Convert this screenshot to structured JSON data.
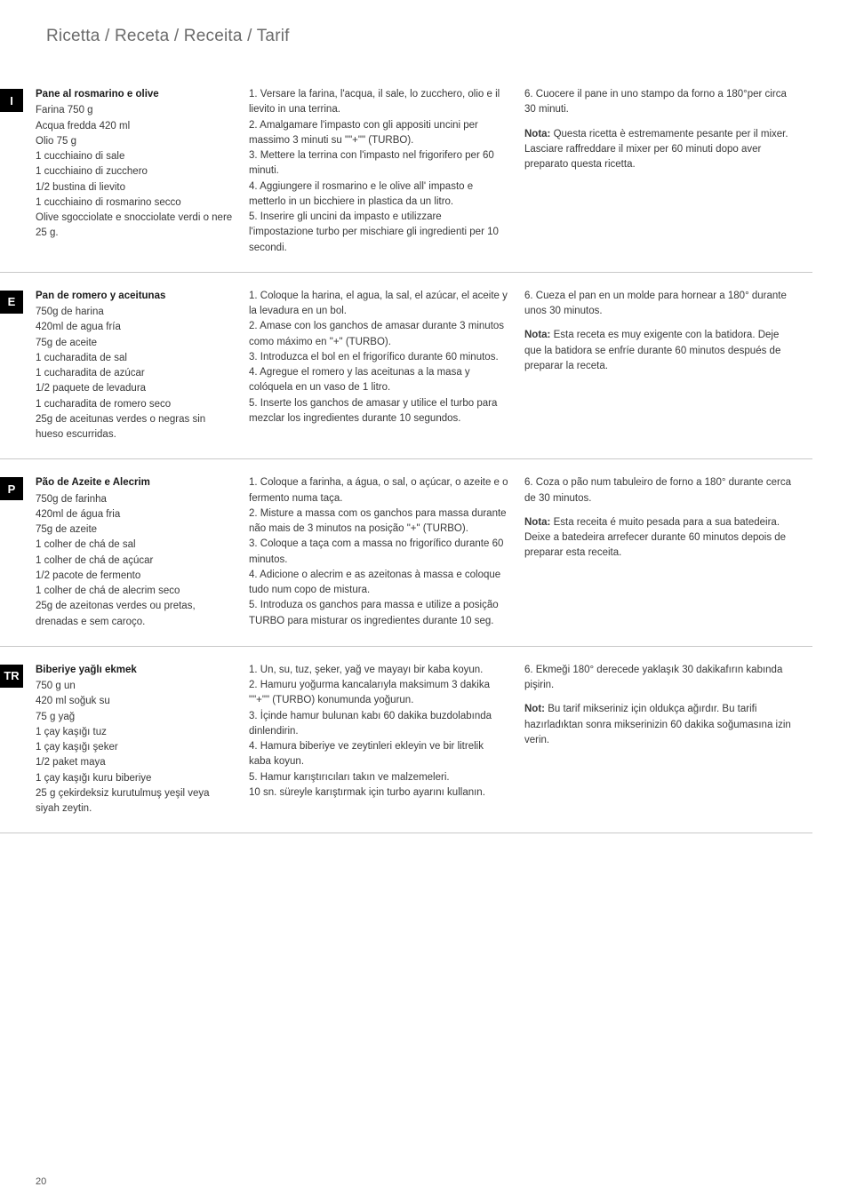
{
  "page_title": "Ricetta / Receta / Receita / Tarif",
  "page_number": "20",
  "colors": {
    "tab_bg": "#000000",
    "tab_fg": "#ffffff",
    "title_color": "#6b6b6b",
    "text_color": "#383838",
    "divider": "#c8c8c8"
  },
  "sections": [
    {
      "lang": "I",
      "title": "Pane al rosmarino e olive",
      "ingredients": [
        "Farina 750 g",
        "Acqua fredda 420 ml",
        "Olio 75 g",
        "1 cucchiaino di sale",
        "1 cucchiaino di zucchero",
        "1/2 bustina di lievito",
        "1 cucchiaino di rosmarino secco",
        "Olive sgocciolate e snocciolate verdi o nere 25 g."
      ],
      "steps": [
        "1. Versare la farina, l'acqua, il sale, lo zucchero, olio e il lievito in una terrina.",
        "2. Amalgamare l'impasto con gli appositi uncini per massimo 3 minuti su \"\"+\"\" (TURBO).",
        "3. Mettere la terrina con l'impasto nel frigorifero per 60 minuti.",
        "4. Aggiungere il rosmarino e le olive all' impasto e metterlo in un bicchiere in plastica da un litro.",
        "5. Inserire gli uncini da impasto e utilizzare l'impostazione turbo per mischiare gli ingredienti per 10 secondi."
      ],
      "note_lines": [
        "6. Cuocere il pane in uno stampo da forno a 180°per circa 30 minuti."
      ],
      "note_label": "Nota:",
      "note_text": " Questa ricetta è estremamente pesante per il mixer. Lasciare raffreddare il mixer per 60 minuti dopo aver preparato questa ricetta."
    },
    {
      "lang": "E",
      "title": "Pan de romero y aceitunas",
      "ingredients": [
        "750g de harina",
        "420ml de agua fría",
        "75g de aceite",
        "1 cucharadita de sal",
        "1 cucharadita de azúcar",
        "1/2 paquete de levadura",
        "1 cucharadita de romero seco",
        "25g de aceitunas verdes o negras sin hueso escurridas."
      ],
      "steps": [
        "1. Coloque la harina, el agua, la sal, el azúcar, el aceite y la levadura en un bol.",
        "2. Amase con los ganchos de amasar durante 3 minutos como máximo en \"+\" (TURBO).",
        "3. Introduzca el bol en el frigorífico durante 60 minutos.",
        "4. Agregue el romero y las aceitunas a la masa y colóquela en un vaso de 1 litro.",
        "5. Inserte los ganchos de amasar y utilice el turbo para mezclar los ingredientes durante 10 segundos."
      ],
      "note_lines": [
        "6. Cueza el pan en un molde para hornear a 180° durante unos 30 minutos."
      ],
      "note_label": "Nota:",
      "note_text": " Esta receta es muy exigente con la batidora. Deje que la batidora se enfríe durante 60 minutos después de preparar la receta."
    },
    {
      "lang": "P",
      "title": "Pão de Azeite e Alecrim",
      "ingredients": [
        "750g de farinha",
        "420ml de água fria",
        "75g de azeite",
        "1 colher de chá de sal",
        "1 colher de chá de açúcar",
        "1/2 pacote de fermento",
        "1 colher de chá de alecrim seco",
        "25g de azeitonas verdes ou pretas, drenadas e sem caroço."
      ],
      "steps": [
        "1. Coloque a farinha, a água, o sal, o açúcar, o azeite e o fermento numa taça.",
        "2. Misture a massa com os ganchos para massa durante não mais de 3 minutos na posição \"+\" (TURBO).",
        "3. Coloque a taça com a massa no frigorífico durante 60 minutos.",
        "4. Adicione o alecrim e as azeitonas à massa e coloque tudo num copo de mistura.",
        "5. Introduza os ganchos para massa e utilize a posição TURBO para misturar os ingredientes durante 10 seg."
      ],
      "note_lines": [
        "6. Coza o pão num tabuleiro de forno a 180° durante cerca de 30 minutos."
      ],
      "note_label": "Nota:",
      "note_text": " Esta receita é muito pesada para a sua batedeira. Deixe a batedeira arrefecer durante 60 minutos depois de preparar esta receita."
    },
    {
      "lang": "TR",
      "title": "Biberiye yağlı ekmek",
      "ingredients": [
        "750 g un",
        "420 ml soğuk su",
        "75 g yağ",
        "1 çay kaşığı tuz",
        "1 çay kaşığı şeker",
        "1/2 paket maya",
        "1 çay kaşığı kuru biberiye",
        "25 g çekirdeksiz kurutulmuş yeşil veya siyah zeytin."
      ],
      "steps": [
        "1. Un, su, tuz, şeker, yağ ve mayayı bir kaba koyun.",
        "2. Hamuru yoğurma kancalarıyla maksimum 3 dakika \"\"+\"\" (TURBO) konumunda yoğurun.",
        "3. İçinde hamur bulunan kabı 60 dakika buzdolabında dinlendirin.",
        "4. Hamura biberiye ve zeytinleri ekleyin ve bir litrelik kaba koyun.",
        "5. Hamur karıştırıcıları takın ve malzemeleri.",
        "10 sn. süreyle karıştırmak için turbo ayarını kullanın."
      ],
      "note_lines": [
        "6. Ekmeği 180° derecede yaklaşık 30 dakikafırın kabında pişirin."
      ],
      "note_label": "Not:",
      "note_text": " Bu tarif mikseriniz için oldukça ağırdır. Bu tarifi hazırladıktan sonra mikserinizin 60 dakika soğumasına izin verin."
    }
  ]
}
